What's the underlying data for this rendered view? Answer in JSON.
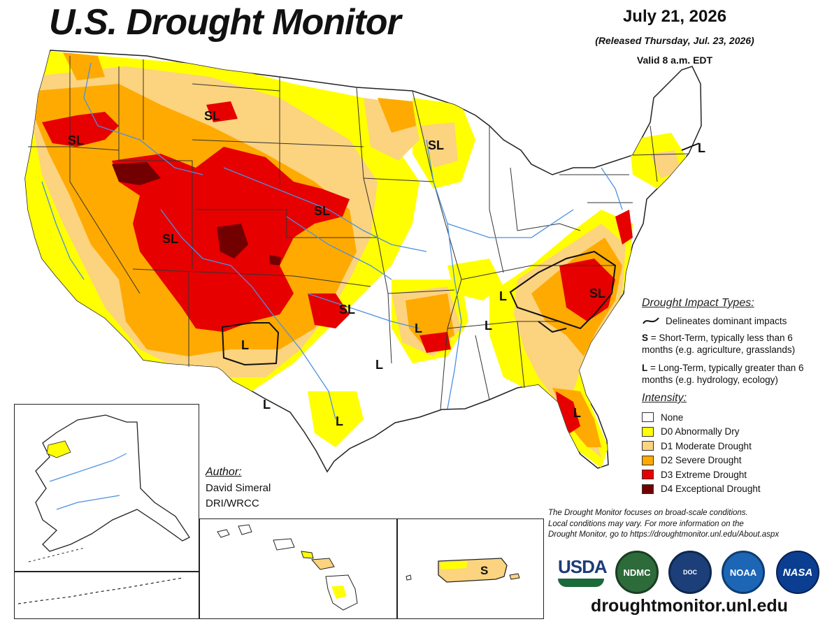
{
  "header": {
    "title": "U.S. Drought Monitor",
    "date": "July 21, 2026",
    "released": "(Released Thursday, Jul. 23, 2026)",
    "valid": "Valid 8 a.m. EDT"
  },
  "map": {
    "impact_labels": [
      "SL",
      "SL",
      "SL",
      "SL",
      "SL",
      "SL",
      "SL",
      "L",
      "L",
      "L",
      "L",
      "L",
      "L",
      "L",
      "L",
      "L",
      "S"
    ]
  },
  "author": {
    "heading": "Author:",
    "name": "David Simeral",
    "org": "DRI/WRCC"
  },
  "legend": {
    "impact_heading": "Drought Impact Types:",
    "delineates": "Delineates dominant impacts",
    "s_key": "S",
    "s_text": " = Short-Term, typically less than 6 months (e.g. agriculture, grasslands)",
    "l_key": "L",
    "l_text": " = Long-Term, typically greater than 6 months (e.g. hydrology, ecology)",
    "intensity_heading": "Intensity:",
    "categories": [
      {
        "label": "None",
        "color": "#ffffff"
      },
      {
        "label": "D0 Abnormally Dry",
        "color": "#ffff00"
      },
      {
        "label": "D1 Moderate Drought",
        "color": "#fcd37f"
      },
      {
        "label": "D2 Severe Drought",
        "color": "#ffaa00"
      },
      {
        "label": "D3 Extreme Drought",
        "color": "#e60000"
      },
      {
        "label": "D4 Exceptional Drought",
        "color": "#730000"
      }
    ]
  },
  "note": {
    "line1": "The Drought Monitor focuses on broad-scale conditions.",
    "line2": "Local conditions may vary. For more information on the",
    "line3": "Drought Monitor, go to https://droughtmonitor.unl.edu/About.aspx"
  },
  "logos": {
    "usda": "USDA",
    "ndmc": "NDMC",
    "doc": "DOC",
    "noaa": "NOAA",
    "nasa": "NASA"
  },
  "footer": {
    "url": "droughtmonitor.unl.edu"
  }
}
